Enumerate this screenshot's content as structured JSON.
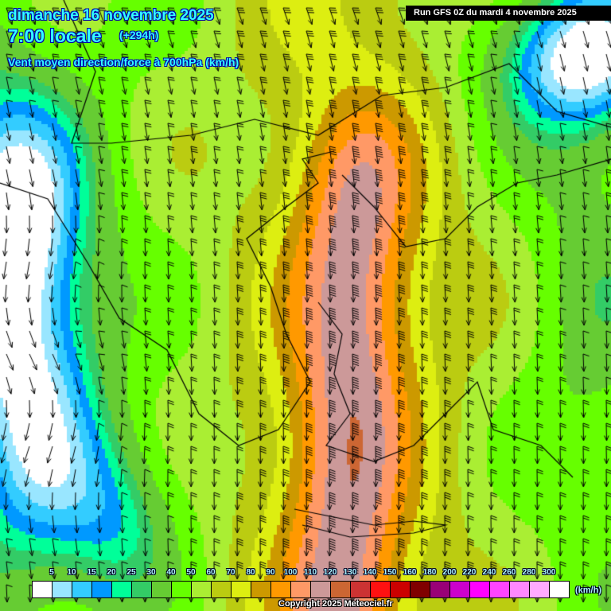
{
  "header": {
    "date": "dimanche 16 novembre 2025",
    "time": "7:00 locale",
    "lead": "(+294h)",
    "parameter": "Vent moyen direction/force à 700hPa (km/h)",
    "run": "Run GFS 0Z du mardi 4 novembre 2025"
  },
  "legend": {
    "labels": [
      "5",
      "10",
      "15",
      "20",
      "25",
      "30",
      "40",
      "50",
      "60",
      "70",
      "80",
      "90",
      "100",
      "110",
      "120",
      "130",
      "140",
      "150",
      "160",
      "180",
      "200",
      "220",
      "240",
      "260",
      "280",
      "300",
      "320"
    ],
    "colors": [
      "#ffffff",
      "#99e6ff",
      "#33ccff",
      "#0099ff",
      "#00ff99",
      "#33cc66",
      "#66cc33",
      "#66ff00",
      "#aaee33",
      "#bbcc11",
      "#ddee11",
      "#cc9900",
      "#ff9900",
      "#ff9966",
      "#cc9999",
      "#cc6633",
      "#cc3333",
      "#ff1111",
      "#cc0000",
      "#800000",
      "#990077",
      "#cc00cc",
      "#ff00ff",
      "#ff44ff",
      "#ff88ff",
      "#ffaaff",
      "#ffffff"
    ],
    "unit": "(km/h)"
  },
  "footer": {
    "copyright": "Copyright 2025 Meteociel.fr"
  }
}
